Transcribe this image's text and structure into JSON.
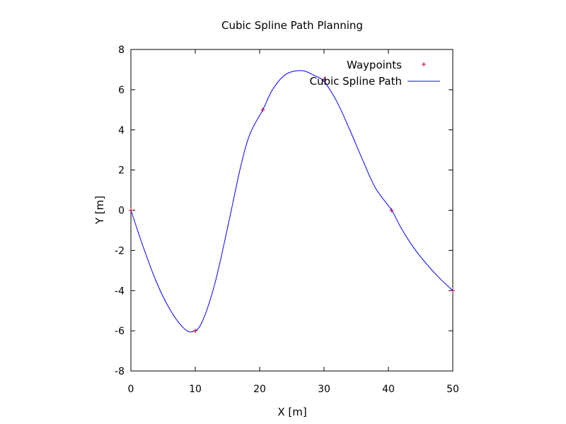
{
  "chart_data": {
    "type": "line",
    "title": "Cubic Spline Path Planning",
    "xlabel": "X [m]",
    "ylabel": "Y [m]",
    "xlim": [
      0,
      50
    ],
    "ylim": [
      -8,
      8
    ],
    "xticks": [
      0,
      10,
      20,
      30,
      40,
      50
    ],
    "yticks": [
      -8,
      -6,
      -4,
      -2,
      0,
      2,
      4,
      6,
      8
    ],
    "grid": false,
    "legend_position": "top-right",
    "series": [
      {
        "name": "Waypoints",
        "kind": "points",
        "marker": "plus",
        "color": "#c0003c",
        "x": [
          0,
          10,
          20.5,
          30,
          40.5,
          50
        ],
        "y": [
          0,
          -6,
          5,
          6.5,
          0,
          -4
        ]
      },
      {
        "name": "Cubic Spline Path",
        "kind": "line",
        "color": "#0000ff",
        "x": [
          0,
          2,
          4,
          6,
          8,
          9.5,
          11,
          13,
          15,
          17,
          18.5,
          20.5,
          22,
          24,
          26.5,
          28.5,
          30,
          32,
          34,
          36,
          38,
          40.5,
          42,
          44,
          46,
          48,
          50
        ],
        "y": [
          0,
          -1.9,
          -3.6,
          -4.9,
          -5.8,
          -6.05,
          -5.6,
          -3.7,
          -0.9,
          2.1,
          3.8,
          5.0,
          6.0,
          6.75,
          6.95,
          6.7,
          6.4,
          5.4,
          4.0,
          2.5,
          1.1,
          0,
          -0.9,
          -1.9,
          -2.7,
          -3.4,
          -4.0
        ]
      }
    ]
  }
}
